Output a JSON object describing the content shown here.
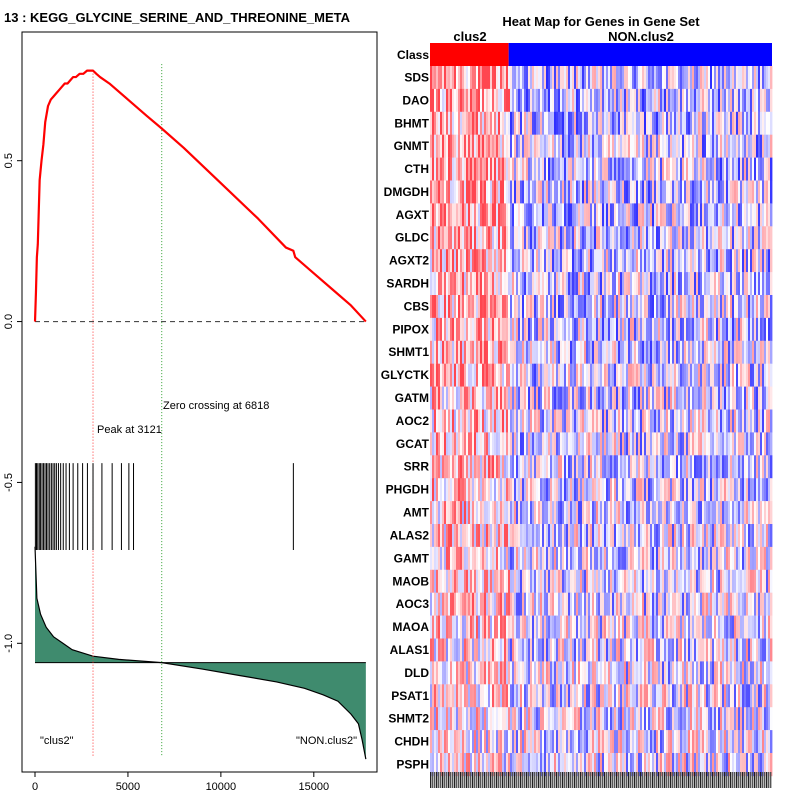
{
  "title": "13 : KEGG_GLYCINE_SERINE_AND_THREONINE_META",
  "chart_data": [
    {
      "type": "line",
      "name": "enrichment-plot",
      "x_ticks": [
        0,
        5000,
        10000,
        15000
      ],
      "x_tick_labels": [
        "0",
        "5000",
        "10000",
        "15000"
      ],
      "y_ticks": [
        0.5,
        0.0,
        -0.5,
        -1.0
      ],
      "y_tick_labels": [
        "0.5",
        "0.0",
        "-0.5",
        "-1.0"
      ],
      "xlim": [
        -700,
        18400
      ],
      "ylim": [
        -1.4,
        0.9
      ],
      "n_genes": 17800,
      "running_es": {
        "x": [
          0,
          50,
          100,
          150,
          250,
          350,
          450,
          550,
          700,
          850,
          1000,
          1150,
          1300,
          1450,
          1600,
          1750,
          1900,
          2050,
          2200,
          2400,
          2600,
          2800,
          2950,
          3121,
          3300,
          3500,
          4000,
          5000,
          6000,
          6818,
          8000,
          10000,
          12000,
          13500,
          13900,
          14000,
          15000,
          16000,
          17000,
          17800
        ],
        "y": [
          0.0,
          0.09,
          0.2,
          0.24,
          0.44,
          0.5,
          0.55,
          0.62,
          0.67,
          0.69,
          0.7,
          0.71,
          0.72,
          0.73,
          0.74,
          0.74,
          0.75,
          0.76,
          0.76,
          0.77,
          0.77,
          0.78,
          0.78,
          0.78,
          0.77,
          0.76,
          0.74,
          0.69,
          0.64,
          0.6,
          0.54,
          0.43,
          0.32,
          0.23,
          0.22,
          0.2,
          0.15,
          0.1,
          0.05,
          0.0
        ]
      },
      "hits": [
        20,
        80,
        150,
        230,
        300,
        380,
        460,
        540,
        620,
        700,
        790,
        880,
        970,
        1060,
        1150,
        1260,
        1380,
        1520,
        1670,
        1850,
        2050,
        2300,
        2560,
        2820,
        3121,
        3600,
        4150,
        4650,
        5050,
        5300,
        13900
      ],
      "ranking_metric": {
        "x": [
          0,
          100,
          300,
          600,
          1000,
          1500,
          2000,
          3121,
          4500,
          6818,
          9000,
          11000,
          13000,
          14500,
          15500,
          16300,
          17000,
          17400,
          17600,
          17800
        ],
        "y": [
          -0.7,
          -0.86,
          -0.91,
          -0.95,
          -0.98,
          -1.0,
          -1.02,
          -1.04,
          -1.05,
          -1.06,
          -1.08,
          -1.1,
          -1.12,
          -1.14,
          -1.16,
          -1.18,
          -1.22,
          -1.25,
          -1.3,
          -1.36
        ]
      },
      "baseline": -1.06,
      "peak_x": 3121,
      "zero_crossing_x": 6818,
      "peak_label": "Peak at 3121",
      "zero_crossing_label": "Zero crossing at 6818",
      "left_class_label": "\"clus2\"",
      "right_class_label": "\"NON.clus2\"",
      "colors": {
        "es_line": "#ff0000",
        "fill": "#3f8b6e",
        "peak_line": "#ff3030",
        "zero_line": "#30a030"
      }
    },
    {
      "type": "heatmap",
      "name": "gene-heatmap",
      "title": "Heat Map for Genes in Gene Set",
      "class_row_label": "Class",
      "class_names": [
        "clus2",
        "NON.clus2"
      ],
      "class_split_fraction": 0.23,
      "class_colors": [
        "#ff0000",
        "#0000ff"
      ],
      "genes": [
        "SDS",
        "DAO",
        "BHMT",
        "GNMT",
        "CTH",
        "DMGDH",
        "AGXT",
        "GLDC",
        "AGXT2",
        "SARDH",
        "CBS",
        "PIPOX",
        "SHMT1",
        "GLYCTK",
        "GATM",
        "AOC2",
        "GCAT",
        "SRR",
        "PHGDH",
        "AMT",
        "ALAS2",
        "GAMT",
        "MAOB",
        "AOC3",
        "MAOA",
        "ALAS1",
        "DLD",
        "PSAT1",
        "SHMT2",
        "CHDH",
        "PSPH"
      ]
    }
  ]
}
